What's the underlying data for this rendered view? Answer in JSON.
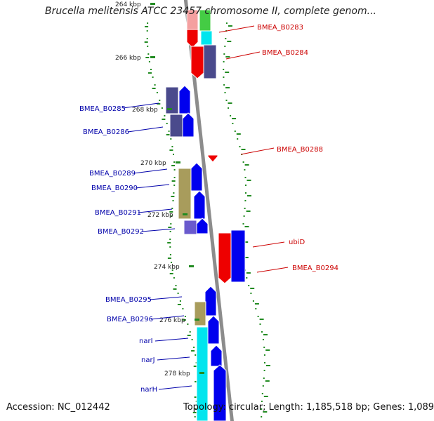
{
  "title": "Brucella melitensis ATCC 23457 chromosome II, complete genom...",
  "accession": "Accession: NC_012442",
  "topology": "Topology: circular; Length: 1,185,518 bp; Genes: 1,089",
  "colors": {
    "forward_cds": "#0000ee",
    "reverse_cds": "#ee0000",
    "forward_label": "#0000aa",
    "reverse_label": "#cc0000",
    "backbone": "#8c8c8c",
    "tick": "#228b22",
    "gc_dots": "#228b22"
  },
  "kbp_ticks": [
    "264 kbp",
    "266 kbp",
    "268 kbp",
    "270 kbp",
    "272 kbp",
    "274 kbp",
    "276 kbp",
    "278 kbp"
  ],
  "genes": [
    {
      "label": "BMEA_B0283",
      "strand": "reverse"
    },
    {
      "label": "BMEA_B0284",
      "strand": "reverse"
    },
    {
      "label": "BMEA_B0285",
      "strand": "forward"
    },
    {
      "label": "BMEA_B0286",
      "strand": "forward"
    },
    {
      "label": "BMEA_B0288",
      "strand": "reverse"
    },
    {
      "label": "BMEA_B0289",
      "strand": "forward"
    },
    {
      "label": "BMEA_B0290",
      "strand": "forward"
    },
    {
      "label": "BMEA_B0291",
      "strand": "forward"
    },
    {
      "label": "BMEA_B0292",
      "strand": "forward"
    },
    {
      "label": "ubiD",
      "strand": "reverse"
    },
    {
      "label": "BMEA_B0294",
      "strand": "reverse"
    },
    {
      "label": "BMEA_B0295",
      "strand": "forward"
    },
    {
      "label": "BMEA_B0296",
      "strand": "forward"
    },
    {
      "label": "narI",
      "strand": "forward"
    },
    {
      "label": "narJ",
      "strand": "forward"
    },
    {
      "label": "narH",
      "strand": "forward"
    }
  ]
}
